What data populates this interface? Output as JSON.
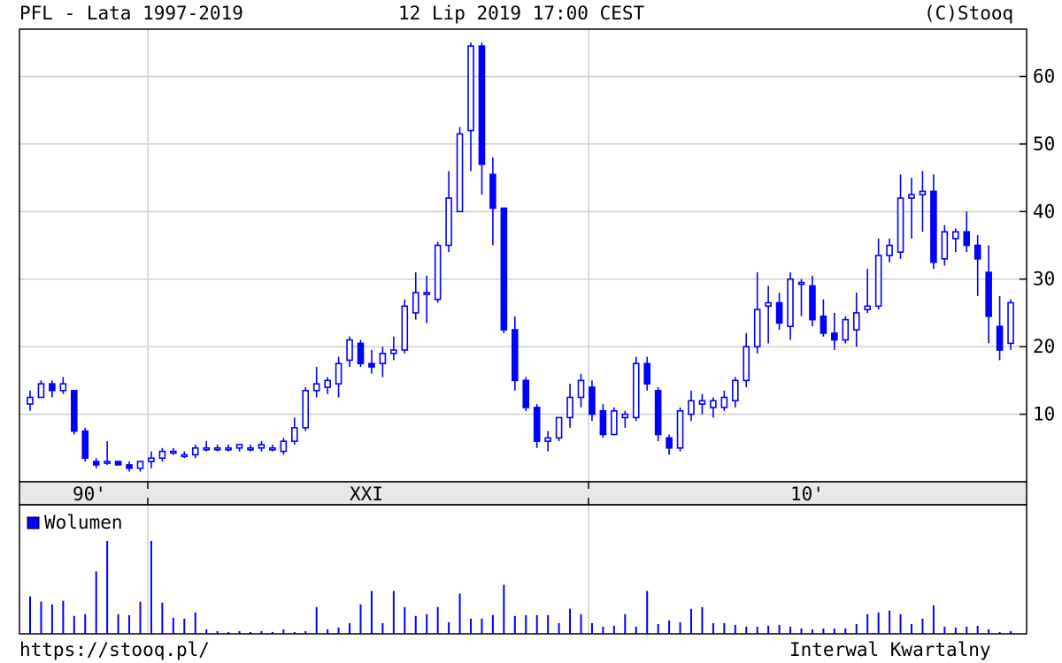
{
  "header": {
    "title": "PFL - Lata 1997-2019",
    "datetime": "12 Lip 2019 17:00 CEST",
    "copyright": "(C)Stooq"
  },
  "footer": {
    "url": "https://stooq.pl/",
    "interval": "Interwal Kwartalny"
  },
  "colors": {
    "candle": "#0000ff",
    "grid": "#d0d0d0",
    "axis_band": "#e8e8e8",
    "frame": "#000000"
  },
  "chart_data": [
    {
      "type": "candlestick",
      "title": "PFL - Lata 1997-2019",
      "xlabel": "",
      "ylabel": "",
      "x_tick_labels": [
        "90'",
        "XXI",
        "10'"
      ],
      "y_ticks": [
        10,
        20,
        30,
        40,
        50,
        60
      ],
      "ylim": [
        0,
        67
      ],
      "grid": true,
      "series": [
        {
          "name": "",
          "ohlc": [
            [
              11.5,
              13.5,
              10.5,
              12.5
            ],
            [
              12.5,
              15.0,
              12.5,
              14.5
            ],
            [
              14.5,
              15.0,
              12.5,
              13.5
            ],
            [
              13.5,
              15.5,
              13.0,
              14.5
            ],
            [
              13.5,
              13.5,
              7.0,
              7.5
            ],
            [
              7.5,
              8.0,
              3.0,
              3.5
            ],
            [
              3.0,
              3.5,
              2.0,
              2.5
            ],
            [
              3.0,
              6.0,
              2.5,
              3.0
            ],
            [
              3.0,
              3.0,
              2.5,
              2.5
            ],
            [
              2.5,
              3.0,
              1.5,
              2.0
            ],
            [
              2.0,
              3.0,
              1.5,
              3.0
            ],
            [
              3.0,
              4.5,
              2.0,
              3.5
            ],
            [
              3.5,
              5.0,
              3.0,
              4.5
            ],
            [
              4.5,
              5.0,
              4.0,
              4.5
            ],
            [
              4.0,
              4.5,
              3.5,
              4.0
            ],
            [
              4.0,
              5.5,
              3.5,
              5.0
            ],
            [
              5.0,
              6.0,
              4.5,
              5.0
            ],
            [
              5.0,
              5.5,
              4.5,
              5.0
            ],
            [
              5.0,
              5.5,
              4.5,
              5.0
            ],
            [
              5.0,
              5.5,
              4.5,
              5.5
            ],
            [
              5.0,
              5.5,
              4.5,
              5.0
            ],
            [
              5.0,
              6.0,
              4.5,
              5.5
            ],
            [
              5.0,
              5.5,
              4.5,
              5.0
            ],
            [
              4.5,
              6.5,
              4.0,
              6.0
            ],
            [
              6.0,
              9.5,
              5.5,
              8.0
            ],
            [
              8.0,
              14.0,
              7.5,
              13.5
            ],
            [
              13.5,
              17.0,
              12.5,
              14.5
            ],
            [
              14.0,
              15.5,
              13.0,
              15.0
            ],
            [
              14.5,
              18.5,
              12.5,
              17.5
            ],
            [
              18.0,
              21.5,
              17.0,
              21.0
            ],
            [
              20.5,
              21.0,
              17.0,
              17.5
            ],
            [
              17.5,
              19.5,
              16.0,
              17.0
            ],
            [
              17.5,
              20.0,
              15.5,
              19.0
            ],
            [
              19.0,
              21.5,
              18.0,
              19.5
            ],
            [
              19.5,
              27.0,
              19.0,
              26.0
            ],
            [
              25.0,
              31.0,
              24.0,
              28.0
            ],
            [
              28.0,
              30.5,
              23.5,
              28.0
            ],
            [
              27.0,
              35.5,
              26.5,
              35.0
            ],
            [
              35.0,
              46.0,
              34.0,
              42.0
            ],
            [
              40.0,
              52.5,
              40.0,
              51.5
            ],
            [
              52.0,
              65.0,
              46.0,
              64.5
            ],
            [
              64.5,
              65.0,
              42.5,
              47.0
            ],
            [
              45.5,
              48.0,
              35.0,
              40.5
            ],
            [
              40.5,
              40.5,
              22.0,
              22.5
            ],
            [
              22.5,
              24.5,
              13.5,
              15.0
            ],
            [
              15.0,
              15.5,
              10.5,
              11.0
            ],
            [
              11.0,
              11.5,
              5.0,
              6.0
            ],
            [
              6.0,
              7.5,
              4.5,
              6.5
            ],
            [
              6.5,
              9.5,
              6.0,
              9.5
            ],
            [
              9.5,
              14.5,
              8.0,
              12.5
            ],
            [
              12.5,
              16.0,
              11.0,
              15.0
            ],
            [
              14.0,
              15.0,
              9.0,
              10.0
            ],
            [
              10.5,
              11.5,
              6.5,
              7.0
            ],
            [
              7.0,
              11.0,
              7.0,
              10.5
            ],
            [
              9.5,
              10.5,
              8.0,
              10.0
            ],
            [
              9.5,
              18.5,
              9.0,
              17.5
            ],
            [
              17.5,
              18.5,
              13.5,
              14.5
            ],
            [
              13.5,
              14.0,
              6.0,
              7.0
            ],
            [
              6.5,
              7.0,
              4.0,
              5.0
            ],
            [
              5.0,
              11.0,
              4.5,
              10.5
            ],
            [
              10.0,
              13.5,
              9.0,
              12.0
            ],
            [
              11.5,
              13.0,
              10.0,
              12.0
            ],
            [
              11.0,
              12.5,
              9.5,
              12.0
            ],
            [
              11.0,
              13.5,
              10.5,
              12.5
            ],
            [
              12.0,
              15.5,
              11.0,
              15.0
            ],
            [
              15.0,
              22.0,
              14.0,
              20.0
            ],
            [
              20.0,
              31.0,
              19.0,
              25.5
            ],
            [
              26.0,
              29.0,
              20.5,
              26.5
            ],
            [
              26.5,
              28.0,
              22.5,
              23.5
            ],
            [
              23.0,
              31.0,
              21.0,
              30.0
            ],
            [
              29.5,
              30.0,
              24.5,
              29.5
            ],
            [
              29.0,
              30.5,
              23.0,
              24.0
            ],
            [
              24.5,
              27.0,
              21.5,
              22.0
            ],
            [
              22.0,
              25.0,
              19.5,
              21.0
            ],
            [
              21.0,
              24.5,
              20.5,
              24.0
            ],
            [
              22.5,
              28.0,
              20.0,
              25.0
            ],
            [
              25.5,
              31.5,
              25.0,
              26.0
            ],
            [
              26.0,
              36.0,
              25.5,
              33.5
            ],
            [
              33.5,
              36.0,
              32.5,
              35.0
            ],
            [
              34.0,
              45.5,
              33.0,
              42.0
            ],
            [
              42.0,
              45.0,
              36.0,
              42.5
            ],
            [
              42.5,
              46.0,
              37.0,
              43.0
            ],
            [
              43.0,
              45.5,
              31.5,
              32.5
            ],
            [
              33.0,
              38.0,
              32.0,
              37.0
            ],
            [
              36.0,
              37.5,
              34.0,
              37.0
            ],
            [
              37.0,
              40.0,
              34.0,
              35.0
            ],
            [
              35.0,
              36.5,
              27.5,
              33.0
            ],
            [
              31.0,
              35.0,
              20.5,
              24.5
            ],
            [
              23.0,
              27.5,
              18.0,
              19.5
            ],
            [
              20.5,
              27.0,
              19.5,
              26.5
            ]
          ]
        }
      ]
    },
    {
      "type": "bar",
      "title": "",
      "legend": [
        "Wolumen"
      ],
      "legend_position": "top-left",
      "series": [
        {
          "name": "Wolumen",
          "values": [
            42,
            36,
            33,
            37,
            20,
            22,
            70,
            104,
            22,
            21,
            36,
            104,
            35,
            18,
            17,
            24,
            5,
            3,
            2,
            3,
            2,
            3,
            2,
            5,
            2,
            3,
            30,
            5,
            7,
            12,
            33,
            48,
            12,
            48,
            30,
            20,
            22,
            30,
            13,
            45,
            17,
            17,
            21,
            55,
            20,
            21,
            21,
            21,
            12,
            28,
            22,
            12,
            8,
            9,
            22,
            8,
            48,
            11,
            15,
            13,
            28,
            30,
            12,
            12,
            10,
            8,
            8,
            9,
            10,
            8,
            6,
            5,
            6,
            6,
            6,
            11,
            22,
            24,
            26,
            22,
            11,
            17,
            32,
            8,
            7,
            8,
            9,
            5,
            2,
            3
          ]
        }
      ]
    }
  ]
}
